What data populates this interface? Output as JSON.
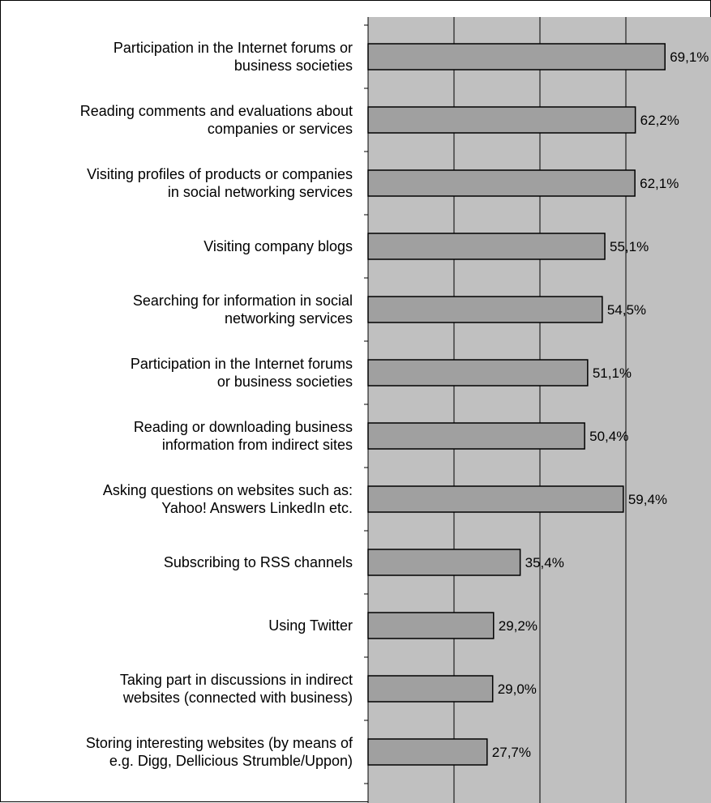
{
  "chart_data": {
    "type": "bar",
    "orientation": "horizontal",
    "categories": [
      [
        "Participation in the Internet forums or",
        "business societies"
      ],
      [
        "Reading comments and evaluations about",
        "companies or services"
      ],
      [
        "Visiting profiles of products or companies",
        "in social networking services"
      ],
      [
        "Visiting company blogs"
      ],
      [
        "Searching for information in social",
        "networking services"
      ],
      [
        "Participation in the Internet forums",
        "or business societies"
      ],
      [
        "Reading or downloading business",
        "information from indirect sites"
      ],
      [
        "Asking questions on websites such as:",
        "Yahoo! Answers LinkedIn etc."
      ],
      [
        "Subscribing to RSS channels"
      ],
      [
        "Using Twitter"
      ],
      [
        "Taking part in discussions in indirect",
        "websites (connected with business)"
      ],
      [
        "Storing interesting websites (by means of",
        "e.g. Digg, Dellicious Strumble/Uppon)"
      ]
    ],
    "values": [
      69.1,
      62.2,
      62.1,
      55.1,
      54.5,
      51.1,
      50.4,
      59.4,
      35.4,
      29.2,
      29.0,
      27.7
    ],
    "value_labels": [
      "69,1%",
      "62,2%",
      "62,1%",
      "55,1%",
      "54,5%",
      "51,1%",
      "50,4%",
      "59,4%",
      "35,4%",
      "29,2%",
      "29,0%",
      "27,7%"
    ],
    "xlim": [
      0,
      80
    ],
    "grid": true,
    "title": "",
    "xlabel": "",
    "ylabel": "",
    "colors": {
      "plot_background": "#c0c0c0",
      "bar_fill": "#a0a0a0",
      "bar_stroke": "#000000",
      "gridline": "#000000"
    }
  }
}
